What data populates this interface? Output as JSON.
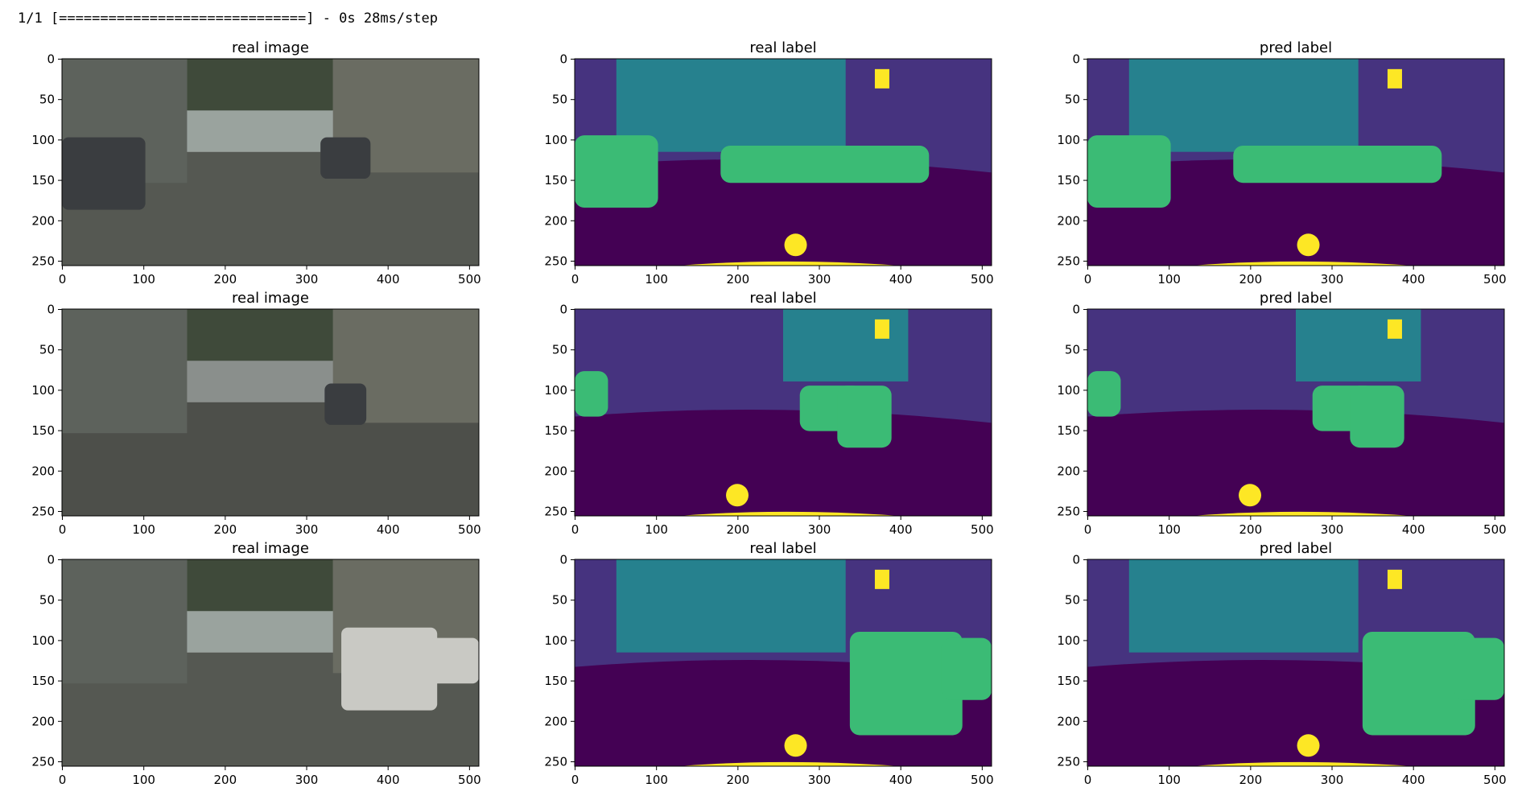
{
  "log": "1/1 [==============================] - 0s 28ms/step",
  "panels": [
    {
      "title": "real image",
      "kind": "image",
      "xlim": [
        -0.5,
        511.5
      ],
      "ylim": [
        255.5,
        -0.5
      ],
      "xticks": [
        0,
        100,
        200,
        300,
        400,
        500
      ],
      "yticks": [
        0,
        50,
        100,
        150,
        200,
        250
      ]
    },
    {
      "title": "real label",
      "kind": "label",
      "xlim": [
        -0.5,
        511.5
      ],
      "ylim": [
        255.5,
        -0.5
      ],
      "xticks": [
        0,
        100,
        200,
        300,
        400,
        500
      ],
      "yticks": [
        0,
        50,
        100,
        150,
        200,
        250
      ]
    },
    {
      "title": "pred label",
      "kind": "label",
      "xlim": [
        -0.5,
        511.5
      ],
      "ylim": [
        255.5,
        -0.5
      ],
      "xticks": [
        0,
        100,
        200,
        300,
        400,
        500
      ],
      "yticks": [
        0,
        50,
        100,
        150,
        200,
        250
      ]
    },
    {
      "title": "real image",
      "kind": "image",
      "xlim": [
        -0.5,
        511.5
      ],
      "ylim": [
        255.5,
        -0.5
      ],
      "xticks": [
        0,
        100,
        200,
        300,
        400,
        500
      ],
      "yticks": [
        0,
        50,
        100,
        150,
        200,
        250
      ]
    },
    {
      "title": "real label",
      "kind": "label",
      "xlim": [
        -0.5,
        511.5
      ],
      "ylim": [
        255.5,
        -0.5
      ],
      "xticks": [
        0,
        100,
        200,
        300,
        400,
        500
      ],
      "yticks": [
        0,
        50,
        100,
        150,
        200,
        250
      ]
    },
    {
      "title": "pred label",
      "kind": "label",
      "xlim": [
        -0.5,
        511.5
      ],
      "ylim": [
        255.5,
        -0.5
      ],
      "xticks": [
        0,
        100,
        200,
        300,
        400,
        500
      ],
      "yticks": [
        0,
        50,
        100,
        150,
        200,
        250
      ]
    },
    {
      "title": "real image",
      "kind": "image",
      "xlim": [
        -0.5,
        511.5
      ],
      "ylim": [
        255.5,
        -0.5
      ],
      "xticks": [
        0,
        100,
        200,
        300,
        400,
        500
      ],
      "yticks": [
        0,
        50,
        100,
        150,
        200,
        250
      ]
    },
    {
      "title": "real label",
      "kind": "label",
      "xlim": [
        -0.5,
        511.5
      ],
      "ylim": [
        255.5,
        -0.5
      ],
      "xticks": [
        0,
        100,
        200,
        300,
        400,
        500
      ],
      "yticks": [
        0,
        50,
        100,
        150,
        200,
        250
      ]
    },
    {
      "title": "pred label",
      "kind": "label",
      "xlim": [
        -0.5,
        511.5
      ],
      "ylim": [
        255.5,
        -0.5
      ],
      "xticks": [
        0,
        100,
        200,
        300,
        400,
        500
      ],
      "yticks": [
        0,
        50,
        100,
        150,
        200,
        250
      ]
    }
  ]
}
